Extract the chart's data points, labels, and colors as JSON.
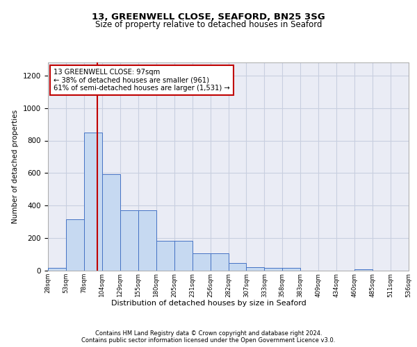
{
  "title1": "13, GREENWELL CLOSE, SEAFORD, BN25 3SG",
  "title2": "Size of property relative to detached houses in Seaford",
  "xlabel": "Distribution of detached houses by size in Seaford",
  "ylabel": "Number of detached properties",
  "bar_values": [
    15,
    315,
    850,
    595,
    370,
    370,
    185,
    185,
    105,
    105,
    45,
    20,
    15,
    15,
    0,
    0,
    0,
    8,
    0,
    0
  ],
  "categories": [
    "28sqm",
    "53sqm",
    "78sqm",
    "104sqm",
    "129sqm",
    "155sqm",
    "180sqm",
    "205sqm",
    "231sqm",
    "256sqm",
    "282sqm",
    "307sqm",
    "333sqm",
    "358sqm",
    "383sqm",
    "409sqm",
    "434sqm",
    "460sqm",
    "485sqm",
    "511sqm",
    "536sqm"
  ],
  "bar_color": "#c6d9f1",
  "bar_edge_color": "#4472c4",
  "vline_color": "#c00000",
  "annotation_text": "13 GREENWELL CLOSE: 97sqm\n← 38% of detached houses are smaller (961)\n61% of semi-detached houses are larger (1,531) →",
  "annotation_box_color": "#ffffff",
  "annotation_box_edge": "#c00000",
  "ylim": [
    0,
    1280
  ],
  "yticks": [
    0,
    200,
    400,
    600,
    800,
    1000,
    1200
  ],
  "footer1": "Contains HM Land Registry data © Crown copyright and database right 2024.",
  "footer2": "Contains public sector information licensed under the Open Government Licence v3.0.",
  "axes_bg_color": "#eaecf5",
  "grid_color": "#c8cfe0"
}
